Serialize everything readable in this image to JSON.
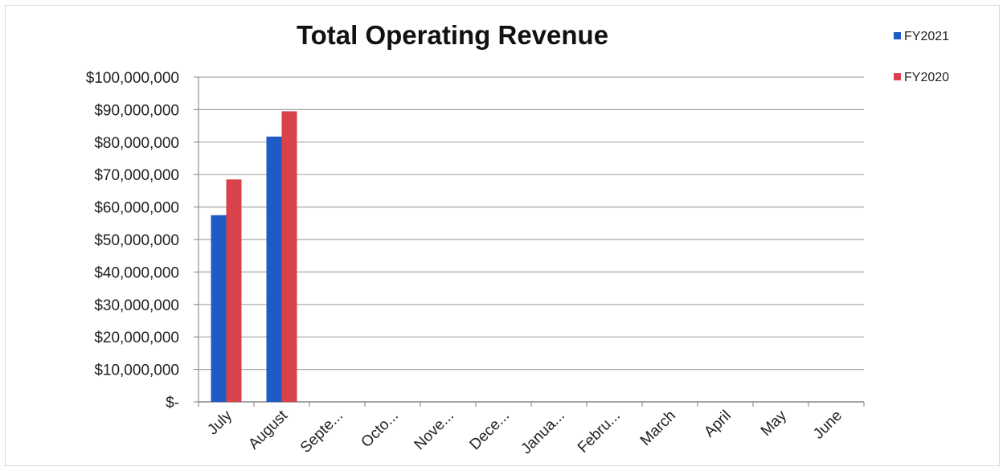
{
  "chart_data": {
    "type": "bar",
    "title": "Total Operating Revenue",
    "xlabel": "",
    "ylabel": "",
    "categories": [
      "July",
      "August",
      "Septe...",
      "Octo...",
      "Nove...",
      "Dece...",
      "Janua...",
      "Febru...",
      "March",
      "April",
      "May",
      "June"
    ],
    "series": [
      {
        "name": "FY2021",
        "color": "#1f5bc4",
        "values": [
          57500000,
          81700000,
          null,
          null,
          null,
          null,
          null,
          null,
          null,
          null,
          null,
          null
        ]
      },
      {
        "name": "FY2020",
        "color": "#d9424b",
        "values": [
          68500000,
          89500000,
          null,
          null,
          null,
          null,
          null,
          null,
          null,
          null,
          null,
          null
        ]
      }
    ],
    "ylim": [
      0,
      100000000
    ],
    "yticks": [
      0,
      10000000,
      20000000,
      30000000,
      40000000,
      50000000,
      60000000,
      70000000,
      80000000,
      90000000,
      100000000
    ],
    "ytick_labels": [
      "$-",
      "$10,000,000",
      "$20,000,000",
      "$30,000,000",
      "$40,000,000",
      "$50,000,000",
      "$60,000,000",
      "$70,000,000",
      "$80,000,000",
      "$90,000,000",
      "$100,000,000"
    ],
    "grid": true,
    "legend_position": "top-right",
    "gridline_color": "#a6a6a6"
  }
}
